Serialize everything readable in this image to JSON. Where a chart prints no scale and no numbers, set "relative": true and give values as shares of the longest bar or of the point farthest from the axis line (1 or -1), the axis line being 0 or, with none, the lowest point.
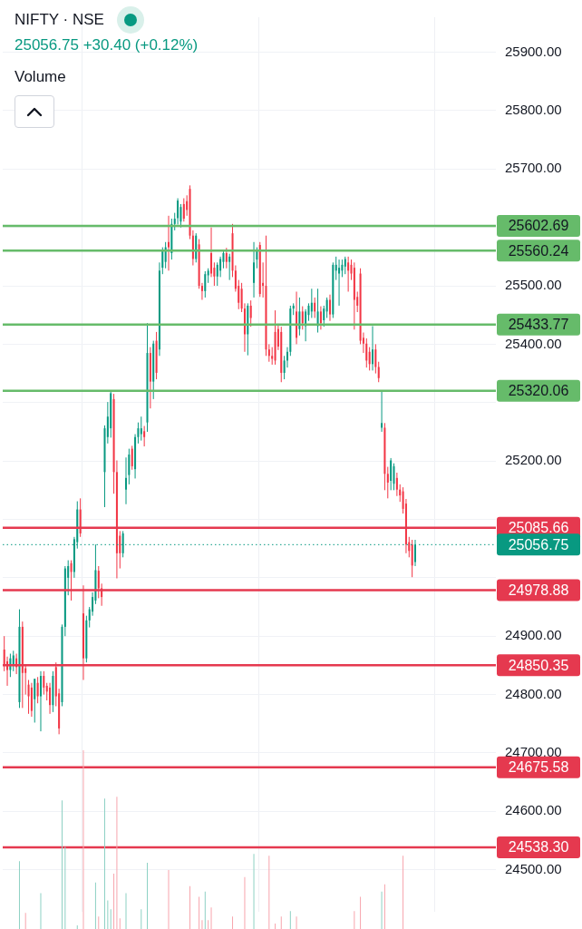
{
  "chart_data": [
    {
      "type": "candlestick",
      "title": "NIFTY · NSE",
      "subtitle": "25056.75 +30.40 (+0.12%)",
      "categories": [
        null,
        null,
        null,
        null,
        null,
        null,
        null,
        null,
        null,
        null,
        null,
        null,
        null,
        null,
        null,
        null,
        null,
        null,
        null,
        null,
        null,
        null,
        null,
        null,
        null,
        null,
        null,
        null,
        null,
        null,
        null,
        null,
        null,
        null,
        null,
        null,
        null,
        null,
        null,
        null,
        null,
        null,
        null,
        null,
        null,
        null,
        null,
        null,
        null,
        null,
        null,
        null,
        null,
        null,
        null,
        null,
        null,
        null,
        null,
        null,
        null,
        null,
        null,
        null,
        null,
        null,
        null,
        null,
        null,
        null,
        null,
        null,
        null,
        null,
        null,
        null,
        null,
        null,
        null,
        null,
        null,
        null,
        null,
        null,
        null,
        null,
        null,
        null,
        null,
        null,
        null,
        null,
        null,
        null,
        null,
        null,
        null,
        null,
        null,
        null,
        null,
        null,
        null,
        null,
        null,
        null,
        null,
        null,
        null,
        null,
        null,
        null,
        null,
        null,
        null,
        null,
        null,
        null,
        null,
        null,
        null,
        null,
        null,
        null,
        null,
        null,
        null,
        null,
        null,
        null,
        null,
        null,
        null,
        null,
        null,
        null,
        null,
        null,
        null,
        null,
        null,
        null,
        null,
        null,
        null,
        null,
        null,
        null,
        null,
        null,
        null,
        null,
        null,
        null,
        null,
        null,
        null,
        null,
        null,
        null,
        null,
        null
      ],
      "ohlc": [
        [
          24877,
          24900,
          24840,
          24852
        ],
        [
          24857,
          24865,
          24815,
          24842
        ],
        [
          24842,
          24870,
          24830,
          24862
        ],
        [
          24852,
          24875,
          24840,
          24867
        ],
        [
          24862,
          24870,
          24835,
          24847
        ],
        [
          24787,
          24946,
          24777,
          24916
        ],
        [
          24916,
          24925,
          24777,
          24837
        ],
        [
          24845,
          24850,
          24800,
          24837
        ],
        [
          24817,
          24825,
          24767,
          24797
        ],
        [
          24812,
          24820,
          24762,
          24772
        ],
        [
          24792,
          24827,
          24752,
          24827
        ],
        [
          24820,
          24830,
          24785,
          24797
        ],
        [
          24797,
          24840,
          24737,
          24832
        ],
        [
          24832,
          24840,
          24800,
          24812
        ],
        [
          24815,
          24820,
          24790,
          24805
        ],
        [
          24812,
          24820,
          24767,
          24782
        ],
        [
          24782,
          24840,
          24770,
          24832
        ],
        [
          24847,
          24855,
          24780,
          24797
        ],
        [
          24802,
          24810,
          24732,
          24742
        ],
        [
          24787,
          24920,
          24780,
          24916
        ],
        [
          24916,
          25020,
          24900,
          25016
        ],
        [
          25000,
          25030,
          24970,
          25020
        ],
        [
          25025,
          25030,
          24961,
          25010
        ],
        [
          25010,
          25070,
          25000,
          25066
        ],
        [
          25061,
          25131,
          25050,
          25117
        ],
        [
          25117,
          25136,
          25070,
          25076
        ],
        [
          24939,
          24987,
          24825,
          24862
        ],
        [
          24862,
          24935,
          24855,
          24927
        ],
        [
          24927,
          24950,
          24915,
          24946
        ],
        [
          24942,
          24975,
          24935,
          24967
        ],
        [
          24961,
          25057,
          24955,
          25013
        ],
        [
          25012,
          25020,
          24965,
          24982
        ],
        [
          24982,
          24990,
          24952,
          24967
        ],
        [
          25181,
          25261,
          25121,
          25256
        ],
        [
          25241,
          25301,
          25230,
          25276
        ],
        [
          25256,
          25320,
          25240,
          25316
        ],
        [
          25306,
          25315,
          25144,
          25181
        ],
        [
          25181,
          25201,
          24999,
          25042
        ],
        [
          25072,
          25080,
          25016,
          25042
        ],
        [
          25042,
          25080,
          25035,
          25076
        ],
        [
          25151,
          25206,
          25126,
          25171
        ],
        [
          25176,
          25221,
          25160,
          25211
        ],
        [
          25221,
          25226,
          25185,
          25191
        ],
        [
          25186,
          25246,
          25170,
          25241
        ],
        [
          25241,
          25266,
          25230,
          25256
        ],
        [
          25246,
          25276,
          25235,
          25256
        ],
        [
          25251,
          25260,
          25225,
          25241
        ],
        [
          25266,
          25436,
          25250,
          25385
        ],
        [
          25385,
          25395,
          25290,
          25336
        ],
        [
          25336,
          25406,
          25306,
          25401
        ],
        [
          25406,
          25421,
          25340,
          25351
        ],
        [
          25391,
          25540,
          25380,
          25526
        ],
        [
          25531,
          25566,
          25520,
          25561
        ],
        [
          25541,
          25575,
          25530,
          25566
        ],
        [
          25575,
          25620,
          25526,
          25566
        ],
        [
          25556,
          25615,
          25545,
          25606
        ],
        [
          25606,
          25625,
          25595,
          25615
        ],
        [
          25616,
          25650,
          25605,
          25646
        ],
        [
          25610,
          25640,
          25600,
          25635
        ],
        [
          25640,
          25650,
          25610,
          25615
        ],
        [
          25645,
          25655,
          25620,
          25630
        ],
        [
          25666,
          25672,
          25580,
          25586
        ],
        [
          25586,
          25595,
          25535,
          25546
        ],
        [
          25546,
          25590,
          25540,
          25586
        ],
        [
          25571,
          25580,
          25495,
          25500
        ],
        [
          25500,
          25505,
          25476,
          25491
        ],
        [
          25491,
          25525,
          25480,
          25520
        ],
        [
          25518,
          25530,
          25505,
          25526
        ],
        [
          25556,
          25600,
          25515,
          25521
        ],
        [
          25531,
          25540,
          25500,
          25516
        ],
        [
          25516,
          25540,
          25500,
          25536
        ],
        [
          25526,
          25550,
          25515,
          25546
        ],
        [
          25541,
          25560,
          25530,
          25556
        ],
        [
          25556,
          25565,
          25530,
          25541
        ],
        [
          25541,
          25555,
          25510,
          25550
        ],
        [
          25590,
          25606,
          25515,
          25526
        ],
        [
          25526,
          25535,
          25490,
          25495
        ],
        [
          25500,
          25510,
          25460,
          25471
        ],
        [
          25495,
          25505,
          25455,
          25461
        ],
        [
          25461,
          25470,
          25387,
          25417
        ],
        [
          25417,
          25470,
          25381,
          25466
        ],
        [
          25466,
          25475,
          25430,
          25445
        ],
        [
          25505,
          25575,
          25480,
          25540
        ],
        [
          25545,
          25566,
          25530,
          25561
        ],
        [
          25570,
          25575,
          25481,
          25486
        ],
        [
          25505,
          25540,
          25480,
          25500
        ],
        [
          25500,
          25586,
          25380,
          25391
        ],
        [
          25391,
          25400,
          25370,
          25380
        ],
        [
          25380,
          25395,
          25365,
          25375
        ],
        [
          25421,
          25458,
          25365,
          25372
        ],
        [
          25426,
          25435,
          25390,
          25396
        ],
        [
          25421,
          25430,
          25335,
          25351
        ],
        [
          25351,
          25380,
          25340,
          25372
        ],
        [
          25372,
          25395,
          25360,
          25387
        ],
        [
          25387,
          25466,
          25380,
          25461
        ],
        [
          25461,
          25470,
          25450,
          25466
        ],
        [
          25456,
          25490,
          25400,
          25411
        ],
        [
          25426,
          25480,
          25415,
          25456
        ],
        [
          25456,
          25465,
          25425,
          25436
        ],
        [
          25431,
          25460,
          25405,
          25456
        ],
        [
          25450,
          25470,
          25440,
          25466
        ],
        [
          25456,
          25495,
          25445,
          25471
        ],
        [
          25471,
          25480,
          25445,
          25456
        ],
        [
          25431,
          25495,
          25420,
          25456
        ],
        [
          25456,
          25465,
          25425,
          25436
        ],
        [
          25441,
          25466,
          25430,
          25461
        ],
        [
          25456,
          25480,
          25445,
          25476
        ],
        [
          25476,
          25485,
          25440,
          25451
        ],
        [
          25451,
          25540,
          25445,
          25536
        ],
        [
          25526,
          25550,
          25510,
          25536
        ],
        [
          25521,
          25545,
          25466,
          25531
        ],
        [
          25526,
          25545,
          25515,
          25536
        ],
        [
          25533,
          25550,
          25520,
          25546
        ],
        [
          25540,
          25550,
          25490,
          25526
        ],
        [
          25536,
          25545,
          25510,
          25521
        ],
        [
          25531,
          25540,
          25425,
          25476
        ],
        [
          25481,
          25490,
          25455,
          25466
        ],
        [
          25521,
          25530,
          25400,
          25406
        ],
        [
          25411,
          25420,
          25385,
          25401
        ],
        [
          25401,
          25410,
          25360,
          25372
        ],
        [
          25387,
          25395,
          25355,
          25366
        ],
        [
          25366,
          25431,
          25355,
          25391
        ],
        [
          25391,
          25400,
          25350,
          25361
        ],
        [
          25361,
          25370,
          25335,
          25342
        ],
        [
          25257,
          25320,
          25250,
          25265
        ],
        [
          25257,
          25265,
          25150,
          25178
        ],
        [
          25178,
          25190,
          25136,
          25163
        ],
        [
          25166,
          25205,
          25150,
          25201
        ],
        [
          25161,
          25196,
          25150,
          25191
        ],
        [
          25171,
          25180,
          25140,
          25151
        ],
        [
          25151,
          25160,
          25130,
          25141
        ],
        [
          25148,
          25155,
          25110,
          25118
        ],
        [
          25127,
          25135,
          25042,
          25057
        ],
        [
          25061,
          25070,
          25035,
          25046
        ],
        [
          25057,
          25065,
          25001,
          25021
        ],
        [
          25027,
          25065,
          25020,
          25056.75
        ],
        null,
        null,
        null,
        null,
        null,
        null,
        null,
        null,
        null,
        null,
        null,
        null,
        null,
        null,
        null,
        null,
        null,
        null,
        null,
        null,
        null,
        null,
        null,
        null,
        null,
        null
      ],
      "ylim": [
        24428,
        25960
      ],
      "yticks": [
        {
          "value": 24500,
          "label": "24500.00"
        },
        {
          "value": 24600,
          "label": "24600.00"
        },
        {
          "value": 24700,
          "label": "24700.00"
        },
        {
          "value": 24800,
          "label": "24800.00"
        },
        {
          "value": 24900,
          "label": "24900.00"
        },
        {
          "value": 25000,
          "label": null
        },
        {
          "value": 25100,
          "label": null
        },
        {
          "value": 25200,
          "label": "25200.00"
        },
        {
          "value": 25300,
          "label": null
        },
        {
          "value": 25400,
          "label": "25400.00"
        },
        {
          "value": 25500,
          "label": "25500.00"
        },
        {
          "value": 25600,
          "label": null
        },
        {
          "value": 25700,
          "label": "25700.00"
        },
        {
          "value": 25800,
          "label": "25800.00"
        },
        {
          "value": 25900,
          "label": "25900.00"
        }
      ],
      "ref_lines": [
        {
          "axis": "y",
          "value": 25602.69,
          "label": "25602.69",
          "color": "#66bb6a"
        },
        {
          "axis": "y",
          "value": 25560.24,
          "label": "25560.24",
          "color": "#66bb6a"
        },
        {
          "axis": "y",
          "value": 25433.77,
          "label": "25433.77",
          "color": "#66bb6a"
        },
        {
          "axis": "y",
          "value": 25320.06,
          "label": "25320.06",
          "color": "#66bb6a"
        },
        {
          "axis": "y",
          "value": 25085.66,
          "label": "25085.66",
          "color": "#e5394f"
        },
        {
          "axis": "y",
          "value": 25056.75,
          "label": "25056.75",
          "color": "#089981",
          "line_style": "dotted"
        },
        {
          "axis": "y",
          "value": 24978.88,
          "label": "24978.88",
          "color": "#e5394f"
        },
        {
          "axis": "y",
          "value": 24850.35,
          "label": "24850.35",
          "color": "#e5394f"
        },
        {
          "axis": "y",
          "value": 24675.58,
          "label": "24675.58",
          "color": "#e5394f"
        },
        {
          "axis": "y",
          "value": 24538.3,
          "label": "24538.30",
          "color": "#e5394f"
        }
      ],
      "grid": true,
      "tick_labels": "y"
    },
    {
      "type": "bar",
      "title": "Volume",
      "relative": true,
      "categories": [
        null,
        null,
        null,
        null,
        null,
        null,
        null,
        null,
        null,
        null,
        null,
        null,
        null,
        null,
        null,
        null,
        null,
        null,
        null,
        null,
        null,
        null,
        null,
        null,
        null,
        null,
        null,
        null,
        null,
        null,
        null,
        null,
        null,
        null,
        null,
        null,
        null,
        null,
        null,
        null,
        null,
        null,
        null,
        null,
        null,
        null,
        null,
        null,
        null,
        null,
        null,
        null,
        null,
        null,
        null,
        null,
        null,
        null,
        null,
        null,
        null,
        null,
        null,
        null,
        null,
        null,
        null,
        null,
        null,
        null,
        null,
        null,
        null,
        null,
        null,
        null,
        null,
        null,
        null,
        null,
        null,
        null,
        null,
        null,
        null,
        null,
        null,
        null,
        null,
        null,
        null,
        null,
        null,
        null,
        null,
        null,
        null,
        null,
        null,
        null,
        null,
        null,
        null,
        null,
        null,
        null,
        null,
        null,
        null,
        null,
        null,
        null,
        null,
        null,
        null,
        null,
        null,
        null,
        null,
        null,
        null,
        null,
        null,
        null,
        null,
        null,
        null,
        null,
        null,
        null,
        null,
        null,
        null,
        null,
        null,
        null,
        null,
        null,
        null,
        null,
        null,
        null,
        null,
        null,
        null,
        null,
        null,
        null,
        null,
        null,
        null,
        null,
        null,
        null,
        null,
        null,
        null,
        null,
        null,
        null,
        null,
        null
      ],
      "values": [
        null,
        null,
        null,
        null,
        null,
        0.38,
        null,
        0.09,
        null,
        null,
        null,
        null,
        0.2,
        null,
        null,
        null,
        null,
        null,
        null,
        0.72,
        0.46,
        null,
        null,
        null,
        0.02,
        null,
        1,
        null,
        null,
        null,
        0.26,
        0.07,
        null,
        0.73,
        0.16,
        0.11,
        0.31,
        0.74,
        0.06,
        null,
        0.2,
        null,
        null,
        null,
        null,
        0.11,
        null,
        0.37,
        null,
        null,
        null,
        null,
        null,
        null,
        0.33,
        null,
        null,
        null,
        null,
        null,
        null,
        0.24,
        null,
        null,
        0.18,
        0.05,
        0.21,
        0.05,
        0.12,
        null,
        null,
        null,
        null,
        null,
        null,
        0.07,
        null,
        null,
        null,
        0.29,
        null,
        null,
        0.42,
        null,
        null,
        null,
        null,
        0.41,
        null,
        0.03,
        null,
        0.07,
        null,
        null,
        0.1,
        null,
        0.07,
        null,
        null,
        null,
        null,
        null,
        null,
        null,
        null,
        null,
        null,
        null,
        null,
        null,
        null,
        null,
        null,
        null,
        null,
        0.1,
        null,
        0.18,
        null,
        null,
        null,
        null,
        null,
        null,
        0.21,
        0.25,
        null,
        null,
        null,
        null,
        null,
        0.41,
        null,
        null,
        null,
        null,
        null,
        null,
        null,
        null,
        null,
        null,
        null,
        null,
        null,
        null,
        null,
        null,
        null,
        null,
        null,
        null,
        null,
        null,
        null,
        null,
        null,
        null,
        null,
        null,
        null,
        null
      ],
      "colors": [
        null,
        null,
        null,
        null,
        null,
        "#8ed1c4",
        null,
        "#f7a5ad",
        null,
        null,
        null,
        null,
        "#8ed1c4",
        null,
        null,
        null,
        null,
        null,
        null,
        "#8ed1c4",
        "#8ed1c4",
        null,
        null,
        null,
        "#8ed1c4",
        null,
        "#f7a5ad",
        null,
        null,
        null,
        "#8ed1c4",
        "#f7a5ad",
        null,
        "#8ed1c4",
        "#8ed1c4",
        "#8ed1c4",
        "#f7a5ad",
        "#f7a5ad",
        "#f7a5ad",
        null,
        "#8ed1c4",
        null,
        null,
        null,
        null,
        "#8ed1c4",
        null,
        "#8ed1c4",
        null,
        null,
        null,
        null,
        null,
        null,
        "#f7a5ad",
        null,
        null,
        null,
        null,
        null,
        null,
        "#f7a5ad",
        null,
        null,
        "#f7a5ad",
        "#f7a5ad",
        "#8ed1c4",
        "#f7a5ad",
        "#f7a5ad",
        null,
        null,
        null,
        null,
        null,
        null,
        "#f7a5ad",
        null,
        null,
        null,
        "#f7a5ad",
        null,
        null,
        "#8ed1c4",
        null,
        null,
        null,
        null,
        "#f7a5ad",
        null,
        "#f7a5ad",
        null,
        "#f7a5ad",
        null,
        null,
        "#8ed1c4",
        null,
        "#f7a5ad",
        null,
        null,
        null,
        null,
        null,
        null,
        null,
        null,
        null,
        null,
        null,
        null,
        null,
        null,
        null,
        null,
        null,
        null,
        "#f7a5ad",
        null,
        "#f7a5ad",
        null,
        null,
        null,
        null,
        null,
        null,
        "#8ed1c4",
        "#f7a5ad",
        null,
        null,
        null,
        null,
        null,
        "#f7a5ad",
        null,
        null,
        null,
        null,
        null,
        null,
        null,
        null,
        null,
        null,
        null,
        null,
        null,
        null,
        null,
        null,
        null,
        null,
        null,
        null,
        null,
        null,
        null,
        null,
        null,
        null,
        null,
        null,
        null,
        null
      ]
    }
  ]
}
